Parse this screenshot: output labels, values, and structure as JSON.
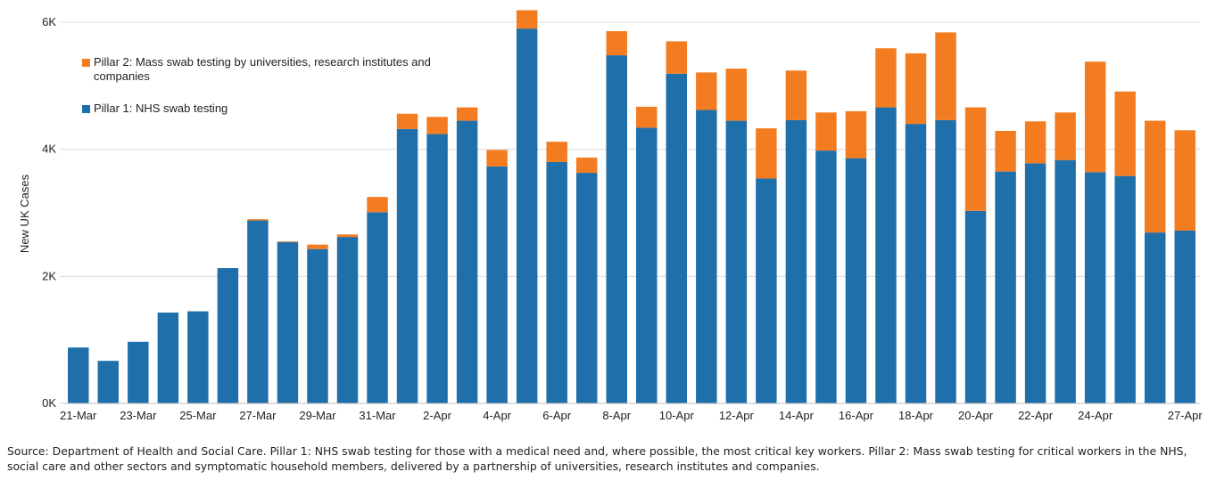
{
  "chart_data": {
    "type": "bar",
    "stacked": true,
    "ylabel": "New UK Cases",
    "ylim": [
      0,
      6000
    ],
    "yticks": [
      {
        "value": 0,
        "label": "0K"
      },
      {
        "value": 2000,
        "label": "2K"
      },
      {
        "value": 4000,
        "label": "4K"
      },
      {
        "value": 6000,
        "label": "6K"
      }
    ],
    "grid": true,
    "legend_position": "top-left",
    "categories": [
      "21-Mar",
      "22-Mar",
      "23-Mar",
      "24-Mar",
      "25-Mar",
      "26-Mar",
      "27-Mar",
      "28-Mar",
      "29-Mar",
      "30-Mar",
      "31-Mar",
      "1-Apr",
      "2-Apr",
      "3-Apr",
      "4-Apr",
      "5-Apr",
      "6-Apr",
      "7-Apr",
      "8-Apr",
      "9-Apr",
      "10-Apr",
      "11-Apr",
      "12-Apr",
      "13-Apr",
      "14-Apr",
      "15-Apr",
      "16-Apr",
      "17-Apr",
      "18-Apr",
      "19-Apr",
      "20-Apr",
      "21-Apr",
      "22-Apr",
      "23-Apr",
      "24-Apr",
      "25-Apr",
      "26-Apr",
      "27-Apr"
    ],
    "xtick_labels": [
      {
        "index": 0,
        "label": "21-Mar"
      },
      {
        "index": 2,
        "label": "23-Mar"
      },
      {
        "index": 4,
        "label": "25-Mar"
      },
      {
        "index": 6,
        "label": "27-Mar"
      },
      {
        "index": 8,
        "label": "29-Mar"
      },
      {
        "index": 10,
        "label": "31-Mar"
      },
      {
        "index": 12,
        "label": "2-Apr"
      },
      {
        "index": 14,
        "label": "4-Apr"
      },
      {
        "index": 16,
        "label": "6-Apr"
      },
      {
        "index": 18,
        "label": "8-Apr"
      },
      {
        "index": 20,
        "label": "10-Apr"
      },
      {
        "index": 22,
        "label": "12-Apr"
      },
      {
        "index": 24,
        "label": "14-Apr"
      },
      {
        "index": 26,
        "label": "16-Apr"
      },
      {
        "index": 28,
        "label": "18-Apr"
      },
      {
        "index": 30,
        "label": "20-Apr"
      },
      {
        "index": 32,
        "label": "22-Apr"
      },
      {
        "index": 34,
        "label": "24-Apr"
      },
      {
        "index": 37,
        "label": "27-Apr"
      }
    ],
    "series": [
      {
        "name": "Pillar 1: NHS swab testing",
        "color": "#1f6fab",
        "values": [
          880,
          670,
          970,
          1430,
          1450,
          2130,
          2880,
          2540,
          2430,
          2620,
          3010,
          4320,
          4240,
          4450,
          3730,
          5900,
          3800,
          3630,
          5480,
          4340,
          5190,
          4620,
          4450,
          3540,
          4460,
          3980,
          3860,
          4660,
          4400,
          4460,
          3030,
          3650,
          3780,
          3830,
          3640,
          3580,
          2690,
          2720
        ]
      },
      {
        "name": "Pillar 2: Mass swab testing by universities, research institutes and companies",
        "color": "#f47c20",
        "values": [
          0,
          0,
          0,
          0,
          0,
          0,
          20,
          10,
          70,
          40,
          240,
          240,
          270,
          210,
          260,
          290,
          320,
          240,
          380,
          330,
          510,
          590,
          820,
          790,
          780,
          600,
          740,
          930,
          1110,
          1380,
          1630,
          640,
          660,
          750,
          1740,
          1330,
          1760,
          1580
        ]
      }
    ]
  },
  "source_note": "Source: Department of Health and Social Care. Pillar 1: NHS swab testing for those with a medical need and, where possible, the most critical key workers. Pillar 2: Mass swab testing for critical workers in the NHS, social care and other sectors and symptomatic household members, delivered by a partnership of universities, research institutes and companies."
}
